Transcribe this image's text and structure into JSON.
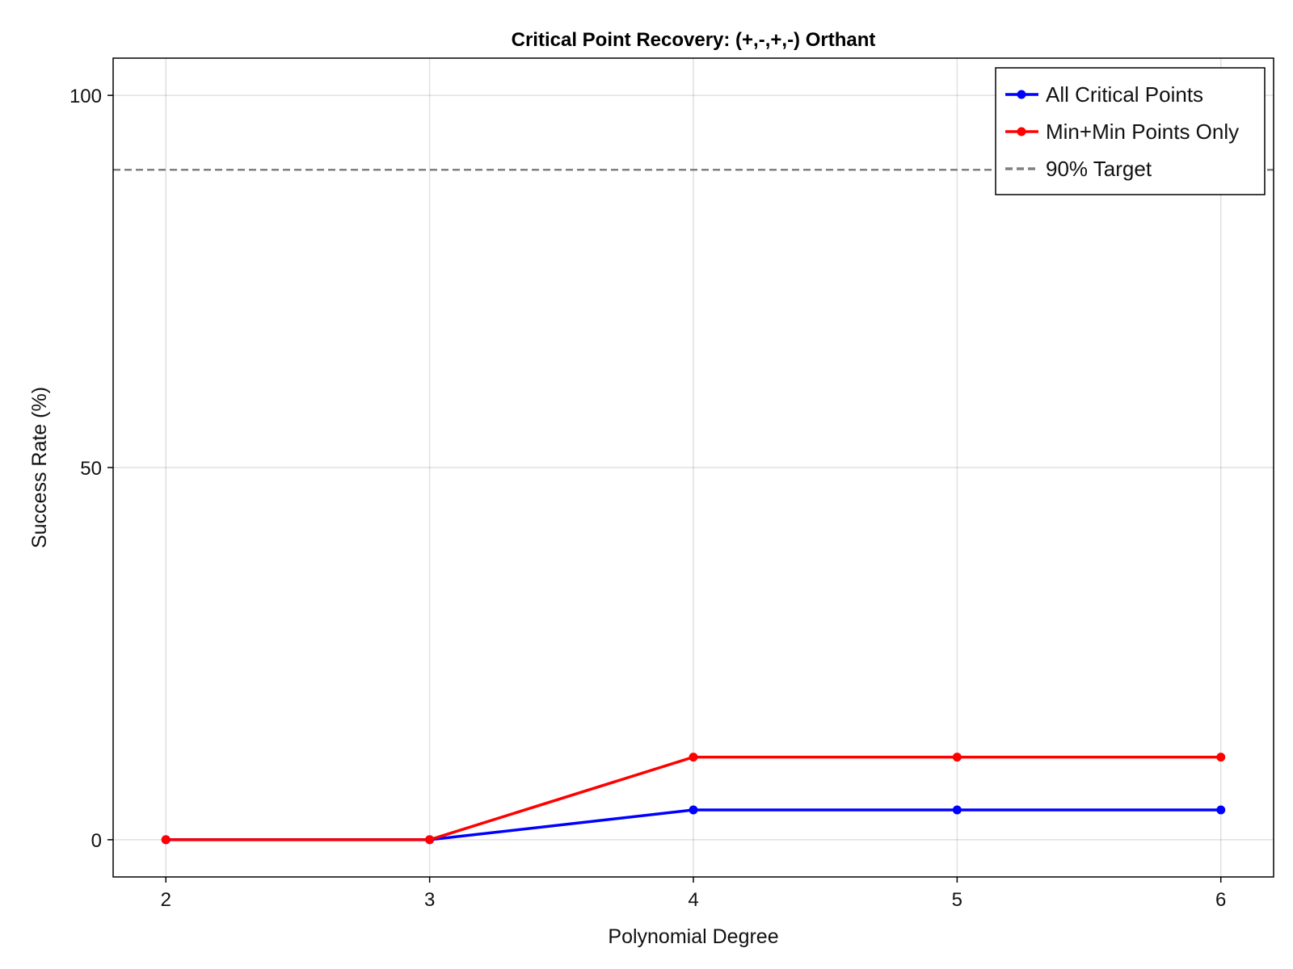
{
  "chart_data": {
    "type": "line",
    "title": "Critical Point Recovery: (+,-,+,-) Orthant",
    "xlabel": "Polynomial Degree",
    "ylabel": "Success Rate (%)",
    "x": [
      2,
      3,
      4,
      5,
      6
    ],
    "x_ticks": [
      "2",
      "3",
      "4",
      "5",
      "6"
    ],
    "y_ticks": [
      "0",
      "50",
      "100"
    ],
    "xlim": [
      1.8,
      6.2
    ],
    "ylim": [
      -5,
      105
    ],
    "grid": true,
    "legend_position": "top-right",
    "series": [
      {
        "name": "All Critical Points",
        "values": [
          0,
          0,
          4,
          4,
          4
        ],
        "color": "#0000ff",
        "style": "solid",
        "markers": true
      },
      {
        "name": "Min+Min Points Only",
        "values": [
          0,
          0,
          11.1,
          11.1,
          11.1
        ],
        "color": "#ff0000",
        "style": "solid",
        "markers": true
      }
    ],
    "reference_lines": [
      {
        "name": "90% Target",
        "y": 90,
        "color": "#808080",
        "style": "dashed"
      }
    ]
  }
}
